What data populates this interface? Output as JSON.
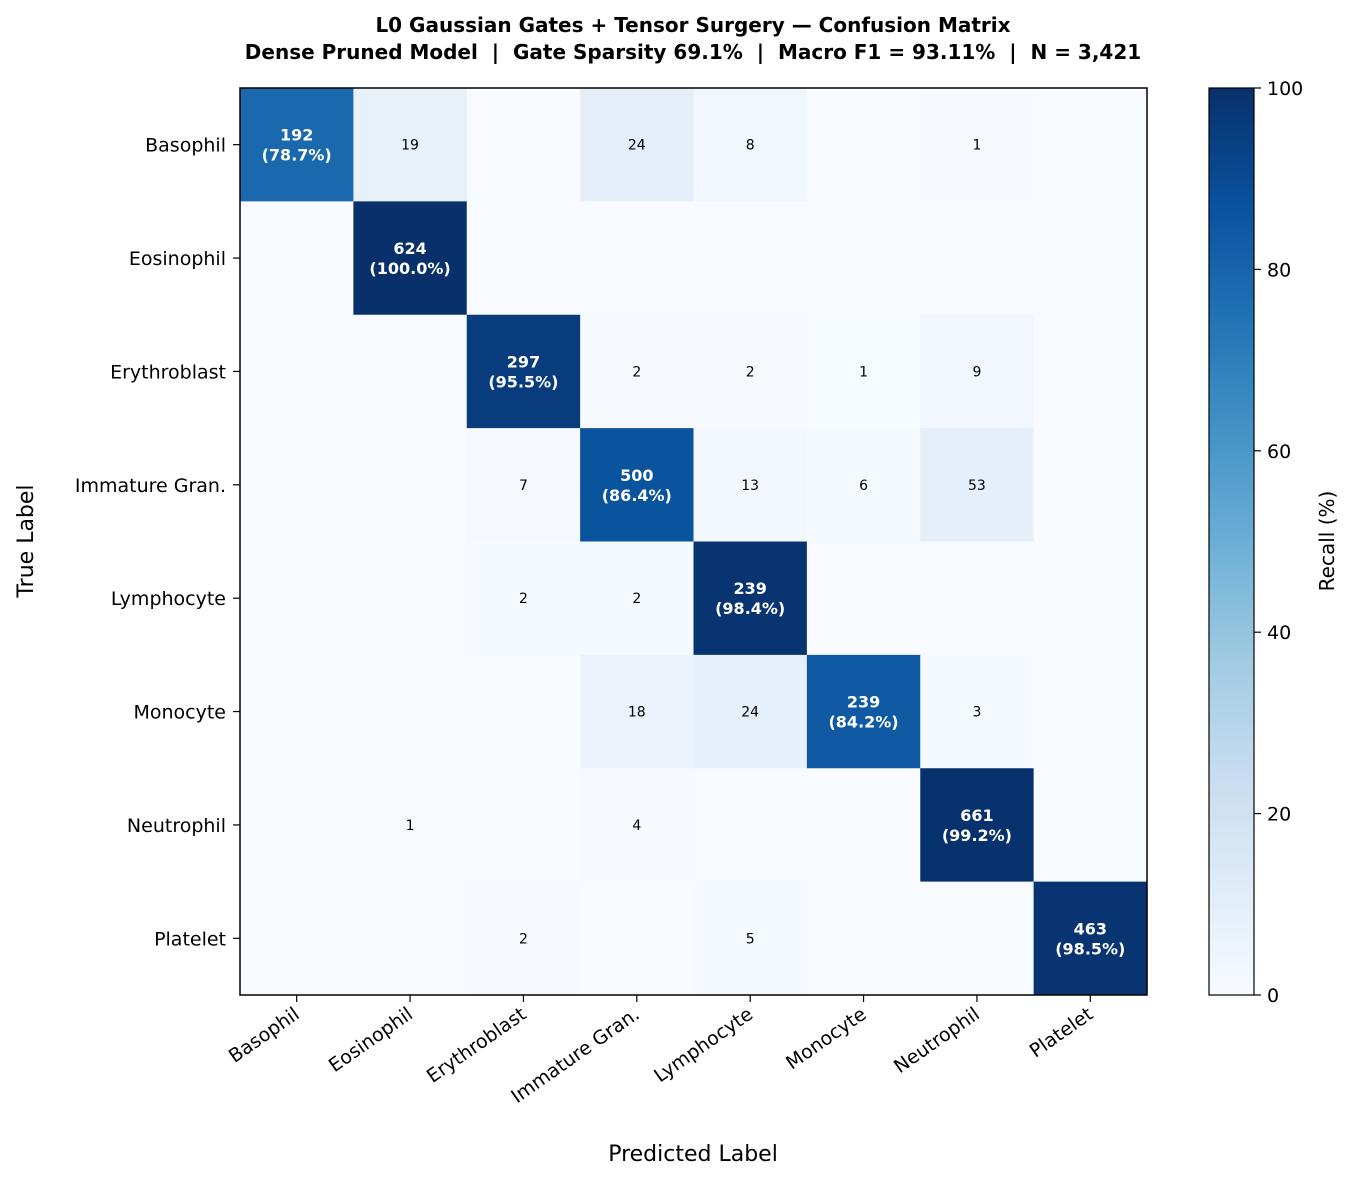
{
  "chart_data": {
    "type": "heatmap",
    "title": "L0 Gaussian Gates + Tensor Surgery — Confusion Matrix",
    "subtitle": "Dense Pruned Model  |  Gate Sparsity 69.1%  |  Macro F1 = 93.11%  |  N = 3,421",
    "xlabel": "Predicted Label",
    "ylabel": "True Label",
    "colorbar_label": "Recall (%)",
    "colorbar_ticks": [
      "0",
      "20",
      "40",
      "60",
      "80",
      "100"
    ],
    "colorbar_range": [
      0,
      100
    ],
    "colormap": "Blues",
    "categories": [
      "Basophil",
      "Eosinophil",
      "Erythroblast",
      "Immature Gran.",
      "Lymphocyte",
      "Monocyte",
      "Neutrophil",
      "Platelet"
    ],
    "counts": [
      [
        192,
        19,
        0,
        24,
        8,
        0,
        1,
        0
      ],
      [
        0,
        624,
        0,
        0,
        0,
        0,
        0,
        0
      ],
      [
        0,
        0,
        297,
        2,
        2,
        1,
        9,
        0
      ],
      [
        0,
        0,
        7,
        500,
        13,
        6,
        53,
        0
      ],
      [
        0,
        0,
        2,
        2,
        239,
        0,
        0,
        0
      ],
      [
        0,
        0,
        0,
        18,
        24,
        239,
        3,
        0
      ],
      [
        0,
        1,
        0,
        4,
        0,
        0,
        661,
        0
      ],
      [
        0,
        0,
        2,
        0,
        5,
        0,
        0,
        463
      ]
    ],
    "diagonal_labels": [
      "(78.7%)",
      "(100.0%)",
      "(95.5%)",
      "(86.4%)",
      "(98.4%)",
      "(84.2%)",
      "(99.2%)",
      "(98.5%)"
    ]
  }
}
